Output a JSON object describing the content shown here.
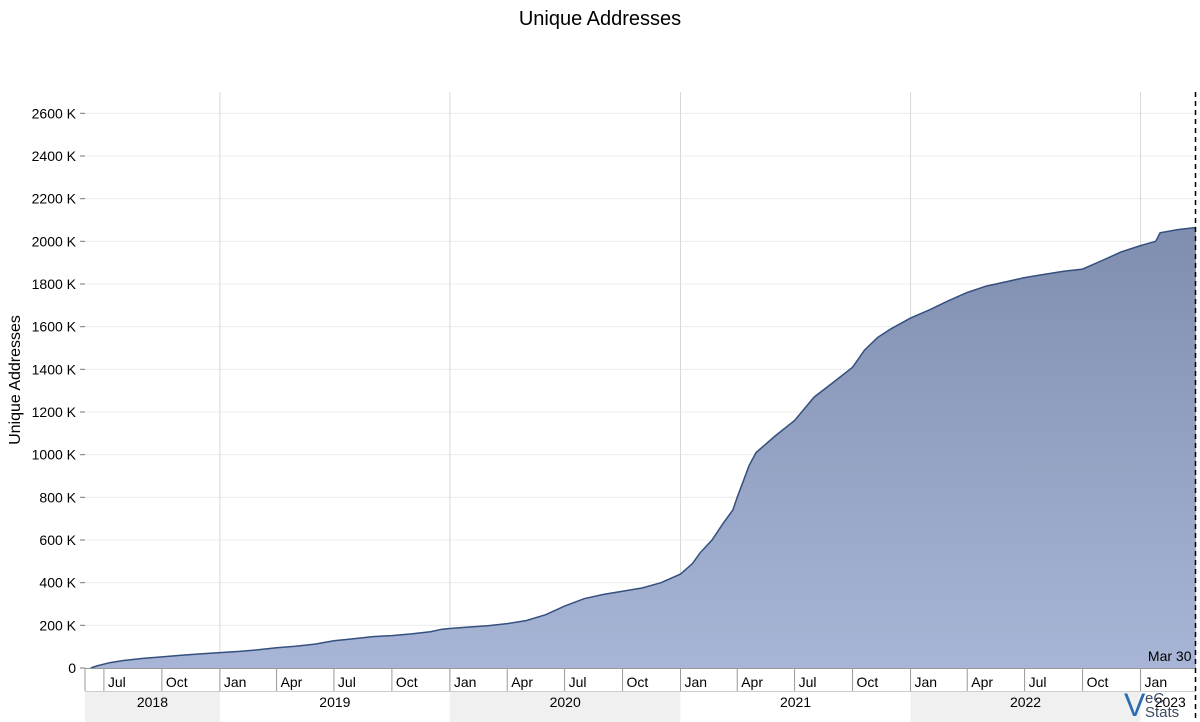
{
  "chart_data": {
    "type": "area",
    "title": "Unique Addresses",
    "xlabel": "",
    "ylabel": "Unique Addresses",
    "ylim": [
      0,
      2700000
    ],
    "y_ticks": [
      0,
      200000,
      400000,
      600000,
      800000,
      1000000,
      1200000,
      1400000,
      1600000,
      1800000,
      2000000,
      2200000,
      2400000,
      2600000
    ],
    "y_tick_labels": [
      "0",
      "200 K",
      "400 K",
      "600 K",
      "800 K",
      "1000 K",
      "1200 K",
      "1400 K",
      "1600 K",
      "1800 K",
      "2000 K",
      "2200 K",
      "2400 K",
      "2600 K"
    ],
    "xlim": [
      "2018-06-01",
      "2023-03-30"
    ],
    "month_ticks": [
      {
        "date": "2018-07-01",
        "label": "Jul"
      },
      {
        "date": "2018-10-01",
        "label": "Oct"
      },
      {
        "date": "2019-01-01",
        "label": "Jan"
      },
      {
        "date": "2019-04-01",
        "label": "Apr"
      },
      {
        "date": "2019-07-01",
        "label": "Jul"
      },
      {
        "date": "2019-10-01",
        "label": "Oct"
      },
      {
        "date": "2020-01-01",
        "label": "Jan"
      },
      {
        "date": "2020-04-01",
        "label": "Apr"
      },
      {
        "date": "2020-07-01",
        "label": "Jul"
      },
      {
        "date": "2020-10-01",
        "label": "Oct"
      },
      {
        "date": "2021-01-01",
        "label": "Jan"
      },
      {
        "date": "2021-04-01",
        "label": "Apr"
      },
      {
        "date": "2021-07-01",
        "label": "Jul"
      },
      {
        "date": "2021-10-01",
        "label": "Oct"
      },
      {
        "date": "2022-01-01",
        "label": "Jan"
      },
      {
        "date": "2022-04-01",
        "label": "Apr"
      },
      {
        "date": "2022-07-01",
        "label": "Jul"
      },
      {
        "date": "2022-10-01",
        "label": "Oct"
      },
      {
        "date": "2023-01-01",
        "label": "Jan"
      }
    ],
    "year_bands": [
      {
        "start": "2018-06-01",
        "end": "2019-01-01",
        "label": "2018",
        "shaded": true
      },
      {
        "start": "2019-01-01",
        "end": "2020-01-01",
        "label": "2019",
        "shaded": false
      },
      {
        "start": "2020-01-01",
        "end": "2021-01-01",
        "label": "2020",
        "shaded": true
      },
      {
        "start": "2021-01-01",
        "end": "2022-01-01",
        "label": "2021",
        "shaded": false
      },
      {
        "start": "2022-01-01",
        "end": "2023-01-01",
        "label": "2022",
        "shaded": true
      },
      {
        "start": "2023-01-01",
        "end": "2023-03-30",
        "label": "2023",
        "shaded": false
      }
    ],
    "marker": {
      "date": "2023-03-30",
      "label": "Mar 30"
    },
    "series": [
      {
        "points": [
          [
            "2018-06-10",
            0
          ],
          [
            "2018-06-20",
            10000
          ],
          [
            "2018-07-10",
            25000
          ],
          [
            "2018-08-01",
            35000
          ],
          [
            "2018-09-01",
            45000
          ],
          [
            "2018-10-01",
            52000
          ],
          [
            "2018-11-01",
            60000
          ],
          [
            "2018-12-01",
            66000
          ],
          [
            "2019-01-01",
            72000
          ],
          [
            "2019-02-01",
            78000
          ],
          [
            "2019-03-01",
            85000
          ],
          [
            "2019-04-01",
            95000
          ],
          [
            "2019-05-01",
            102000
          ],
          [
            "2019-06-01",
            112000
          ],
          [
            "2019-07-01",
            128000
          ],
          [
            "2019-08-01",
            137000
          ],
          [
            "2019-09-01",
            147000
          ],
          [
            "2019-10-01",
            152000
          ],
          [
            "2019-11-01",
            160000
          ],
          [
            "2019-12-01",
            170000
          ],
          [
            "2019-12-20",
            182000
          ],
          [
            "2020-01-01",
            185000
          ],
          [
            "2020-02-01",
            192000
          ],
          [
            "2020-03-01",
            198000
          ],
          [
            "2020-04-01",
            208000
          ],
          [
            "2020-05-01",
            222000
          ],
          [
            "2020-06-01",
            250000
          ],
          [
            "2020-07-01",
            290000
          ],
          [
            "2020-08-01",
            325000
          ],
          [
            "2020-09-01",
            345000
          ],
          [
            "2020-10-01",
            360000
          ],
          [
            "2020-11-01",
            375000
          ],
          [
            "2020-12-01",
            400000
          ],
          [
            "2021-01-01",
            440000
          ],
          [
            "2021-01-20",
            490000
          ],
          [
            "2021-02-01",
            540000
          ],
          [
            "2021-02-20",
            600000
          ],
          [
            "2021-03-10",
            680000
          ],
          [
            "2021-03-25",
            740000
          ],
          [
            "2021-04-01",
            800000
          ],
          [
            "2021-04-20",
            950000
          ],
          [
            "2021-05-01",
            1010000
          ],
          [
            "2021-06-01",
            1090000
          ],
          [
            "2021-07-01",
            1160000
          ],
          [
            "2021-08-01",
            1270000
          ],
          [
            "2021-09-01",
            1340000
          ],
          [
            "2021-10-01",
            1410000
          ],
          [
            "2021-10-20",
            1490000
          ],
          [
            "2021-11-10",
            1550000
          ],
          [
            "2021-12-01",
            1590000
          ],
          [
            "2022-01-01",
            1640000
          ],
          [
            "2022-02-01",
            1680000
          ],
          [
            "2022-03-01",
            1720000
          ],
          [
            "2022-04-01",
            1760000
          ],
          [
            "2022-05-01",
            1790000
          ],
          [
            "2022-06-01",
            1810000
          ],
          [
            "2022-07-01",
            1830000
          ],
          [
            "2022-08-01",
            1845000
          ],
          [
            "2022-09-01",
            1860000
          ],
          [
            "2022-10-01",
            1870000
          ],
          [
            "2022-11-01",
            1910000
          ],
          [
            "2022-12-01",
            1950000
          ],
          [
            "2023-01-01",
            1980000
          ],
          [
            "2023-01-25",
            2000000
          ],
          [
            "2023-02-01",
            2040000
          ],
          [
            "2023-03-01",
            2055000
          ],
          [
            "2023-03-30",
            2065000
          ]
        ]
      }
    ]
  },
  "logo": {
    "letter": "V",
    "line1": "eC",
    "line2": "Stats"
  },
  "colors": {
    "area_top": "#7f8eaf",
    "area_bottom": "#a8b5d6",
    "line": "#34507f",
    "band": "#f0f0f0",
    "grid": "#ececec",
    "year_grid": "#d8d8d8",
    "logo_accent": "#2b6cb0"
  }
}
